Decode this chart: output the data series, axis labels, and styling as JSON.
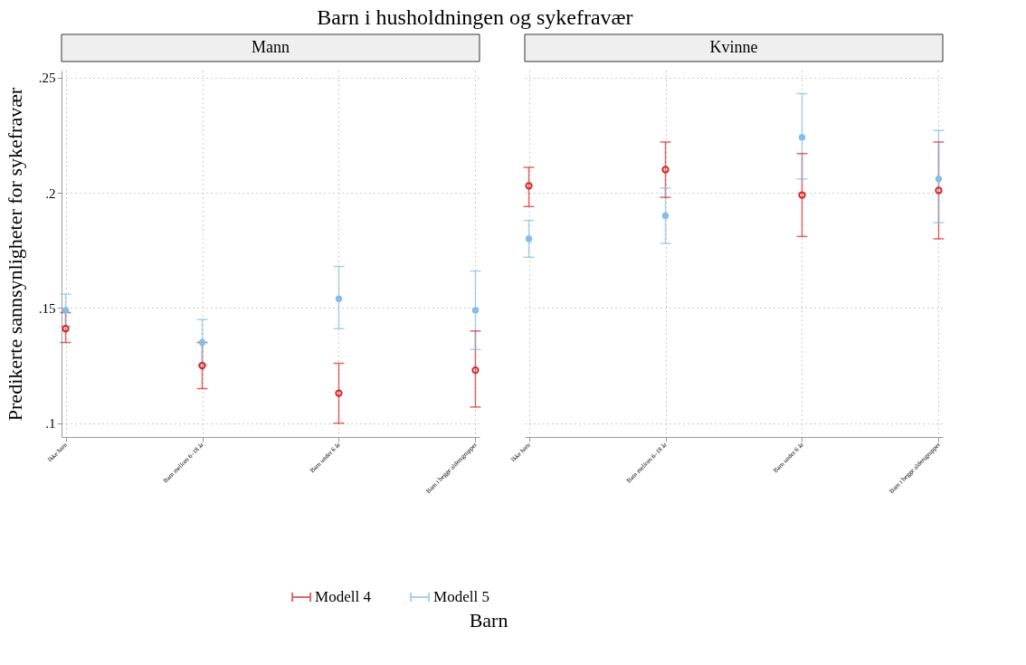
{
  "chart_data": [
    {
      "type": "scatter",
      "title": "Barn i husholdningen og sykefravær",
      "subtitle": "Mann",
      "xlabel": "Barn",
      "ylabel": "Predikerte sannsynligheter for sykefravær",
      "categories": [
        "Ikke barn",
        "Barn mellom 6–18 år",
        "Barn under 6 år",
        "Barn i begge aldersgrupper"
      ],
      "series": [
        {
          "name": "Modell 4",
          "color": "#d62728",
          "marker": "circle",
          "values": [
            0.141,
            0.125,
            0.113,
            0.123
          ],
          "errors": [
            [
              0.135,
              0.148
            ],
            [
              0.115,
              0.135
            ],
            [
              0.1,
              0.126
            ],
            [
              0.107,
              0.14
            ]
          ]
        },
        {
          "name": "Modell 5",
          "color": "#85bde8",
          "marker": "circle",
          "values": [
            0.149,
            0.135,
            0.154,
            0.149
          ],
          "errors": [
            [
              0.142,
              0.156
            ],
            [
              0.125,
              0.145
            ],
            [
              0.141,
              0.168
            ],
            [
              0.132,
              0.166
            ]
          ]
        }
      ],
      "ylim": [
        0.094,
        0.253
      ],
      "yticks": [
        {
          "value": 0.1,
          "label": ".1"
        },
        {
          "value": 0.15,
          "label": ".15"
        },
        {
          "value": 0.2,
          "label": ".2"
        },
        {
          "value": 0.25,
          "label": ".25"
        }
      ],
      "grid": true,
      "legend": "bottom"
    },
    {
      "type": "scatter",
      "subtitle": "Kvinne",
      "categories": [
        "Ikke barn",
        "Barn mellom 6–18 år",
        "Barn under 6 år",
        "Barn i begge aldersgrupper"
      ],
      "series": [
        {
          "color": "#d62728",
          "marker": "circle",
          "values": [
            0.203,
            0.21,
            0.199,
            0.201
          ],
          "errors": [
            [
              0.194,
              0.211
            ],
            [
              0.198,
              0.222
            ],
            [
              0.181,
              0.217
            ],
            [
              0.18,
              0.222
            ]
          ]
        },
        {
          "color": "#85bde8",
          "marker": "circle",
          "values": [
            0.18,
            0.19,
            0.224,
            0.206
          ],
          "errors": [
            [
              0.172,
              0.188
            ],
            [
              0.178,
              0.202
            ],
            [
              0.206,
              0.243
            ],
            [
              0.187,
              0.227
            ]
          ]
        }
      ],
      "ylim": [
        0.094,
        0.253
      ],
      "yticks": [
        {
          "value": 0.1,
          "label": null
        },
        {
          "value": 0.15,
          "label": null
        },
        {
          "value": 0.2,
          "label": null
        },
        {
          "value": 0.25,
          "label": null
        }
      ],
      "grid": true,
      "tick_labels": "x"
    }
  ]
}
